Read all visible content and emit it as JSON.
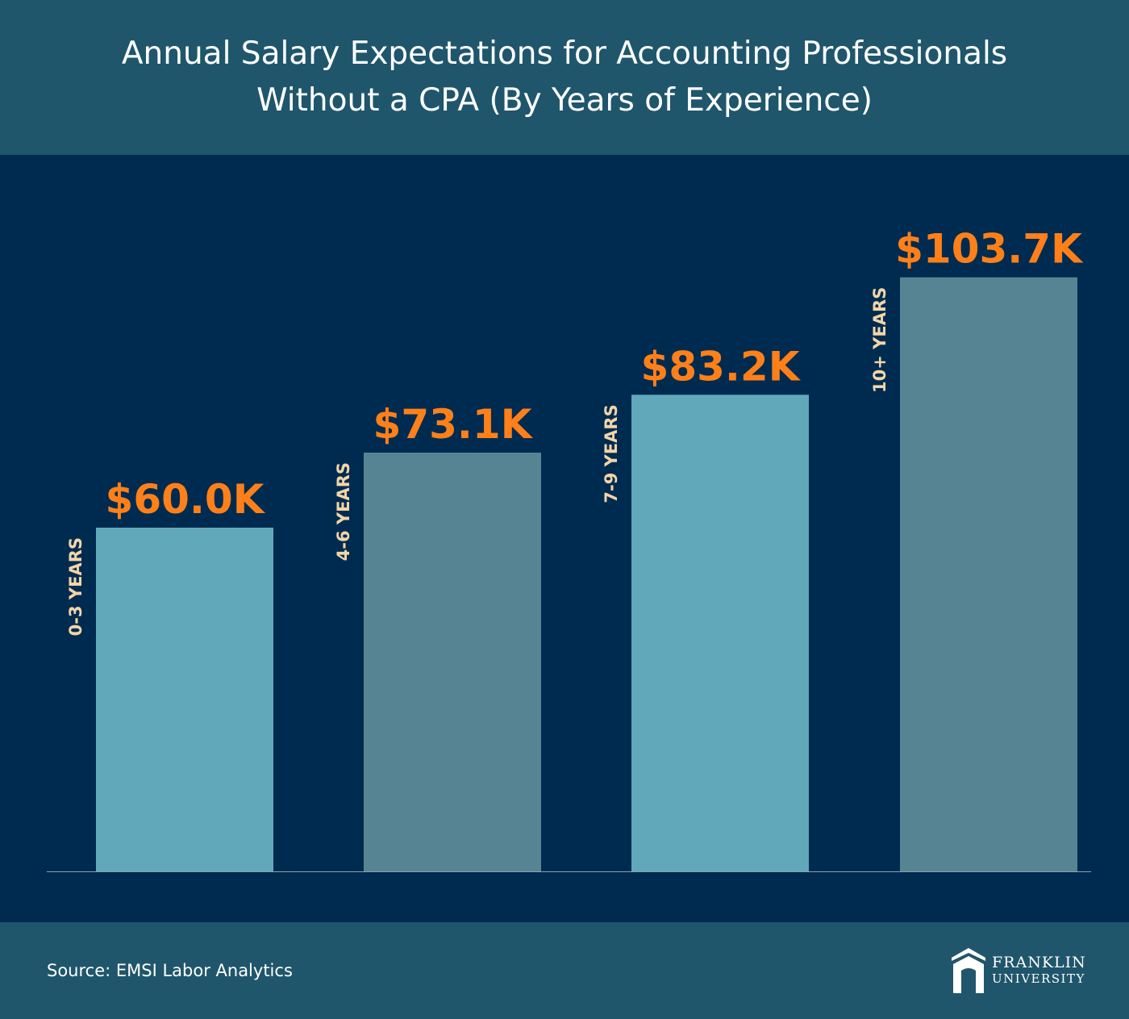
{
  "header": {
    "title_line1": "Annual Salary Expectations for Accounting Professionals",
    "title_line2": "Without a CPA (By Years of Experience)"
  },
  "footer": {
    "source": "Source: EMSI Labor Analytics",
    "logo_line1": "FRANKLIN",
    "logo_line2": "UNIVERSITY"
  },
  "colors": {
    "header_bg": "#1f566b",
    "chart_bg": "#002b50",
    "bar_light": "#62a8bb",
    "bar_dark": "#578492",
    "value_label": "#ff8019",
    "category_label": "#f2d5a8"
  },
  "chart_data": {
    "type": "bar",
    "title": "Annual Salary Expectations for Accounting Professionals Without a CPA (By Years of Experience)",
    "categories": [
      "0-3 YEARS",
      "4-6 YEARS",
      "7-9 YEARS",
      "10+ YEARS"
    ],
    "values": [
      60.0,
      73.1,
      83.2,
      103.7
    ],
    "value_labels": [
      "$60.0K",
      "$73.1K",
      "$83.2K",
      "$103.7K"
    ],
    "unit": "K USD",
    "ylim": [
      0,
      120
    ],
    "grid": false,
    "legend": "none"
  }
}
